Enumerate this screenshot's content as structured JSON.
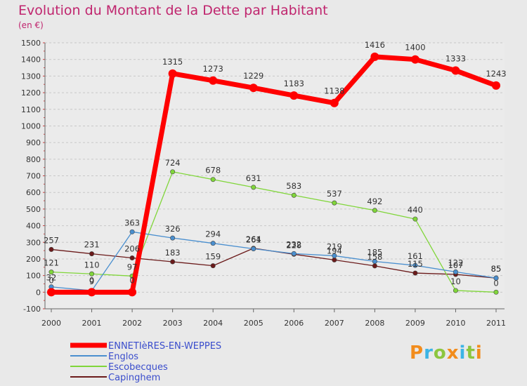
{
  "header": {
    "title": "Evolution du Montant de la Dette par Habitant",
    "unit": "(en €)"
  },
  "logo": {
    "text": "Proxiti",
    "colors": [
      "#f28c1c",
      "#3cb4e5",
      "#8cc63f",
      "#f28c1c",
      "#3cb4e5",
      "#8cc63f",
      "#f28c1c"
    ]
  },
  "chart_data": {
    "type": "line",
    "x": [
      "2000",
      "2001",
      "2002",
      "2003",
      "2004",
      "2005",
      "2006",
      "2007",
      "2008",
      "2009",
      "2010",
      "2011"
    ],
    "ylim": [
      -100,
      1500
    ],
    "yticks": [
      "-100",
      "0",
      "100",
      "200",
      "300",
      "400",
      "500",
      "600",
      "700",
      "800",
      "900",
      "1000",
      "1100",
      "1200",
      "1300",
      "1400",
      "1500"
    ],
    "grid": "horizontal dashed",
    "legend_position": "bottom-left",
    "series": [
      {
        "name": "ENNETIèRES-EN-WEPPES",
        "color": "#ff0000",
        "values": [
          0,
          0,
          0,
          1315,
          1273,
          1229,
          1183,
          1138,
          1416,
          1400,
          1333,
          1243
        ],
        "labels": [
          "0",
          "0",
          "0",
          "1315",
          "1273",
          "1229",
          "1183",
          "1138",
          "1416",
          "1400",
          "1333",
          "1243"
        ]
      },
      {
        "name": "Englos",
        "color": "#4a8fcf",
        "values": [
          32,
          9,
          363,
          326,
          294,
          261,
          232,
          219,
          185,
          161,
          122,
          85
        ],
        "labels": [
          "32",
          "9",
          "363",
          "326",
          "294",
          "261",
          "232",
          "219",
          "185",
          "161",
          "122",
          "85"
        ]
      },
      {
        "name": "Escobecques",
        "color": "#80d63a",
        "values": [
          121,
          110,
          97,
          724,
          678,
          631,
          583,
          537,
          492,
          440,
          10,
          0
        ],
        "labels": [
          "121",
          "110",
          "97",
          "724",
          "678",
          "631",
          "583",
          "537",
          "492",
          "440",
          "10",
          "0"
        ]
      },
      {
        "name": "Capinghem",
        "color": "#6b1a1a",
        "values": [
          257,
          231,
          206,
          183,
          159,
          264,
          228,
          194,
          158,
          115,
          107,
          85
        ],
        "labels": [
          "257",
          "231",
          "206",
          "183",
          "159",
          "264",
          "228",
          "194",
          "158",
          "115",
          "107",
          "85"
        ]
      }
    ]
  }
}
